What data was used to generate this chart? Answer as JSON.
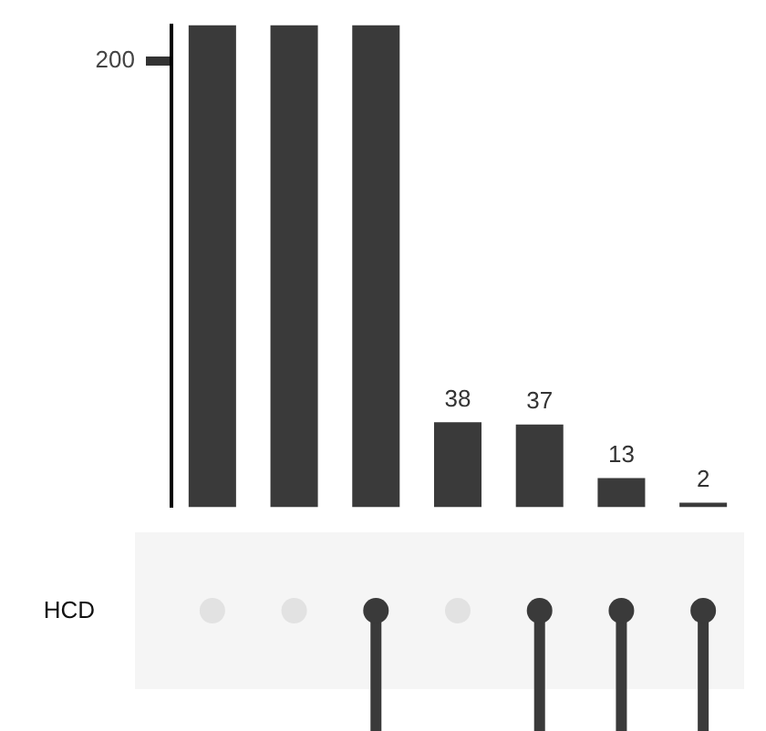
{
  "chart_data": {
    "type": "bar",
    "categories": [
      null,
      null,
      null,
      null,
      null,
      null,
      null
    ],
    "values": [
      216,
      216,
      216,
      38,
      37,
      13,
      2
    ],
    "value_labels": [
      null,
      null,
      null,
      "38",
      "37",
      "13",
      "2"
    ],
    "color": "#3a3a3a",
    "ylim": [
      0,
      216
    ],
    "yticks": [
      200
    ],
    "legend": false,
    "annotations": [
      "HCD"
    ]
  }
}
